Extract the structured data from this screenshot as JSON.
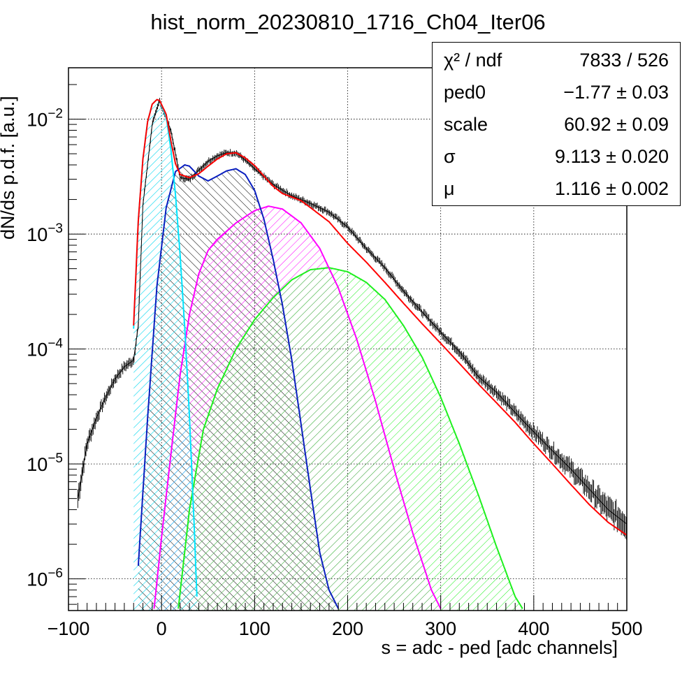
{
  "chart_data": {
    "type": "line",
    "title": "hist_norm_20230810_1716_Ch04_Iter06",
    "xlabel": "s = adc - ped [adc channels]",
    "ylabel": "dN/ds p.d.f. [a.u.]",
    "xlim": [
      -100,
      500
    ],
    "ylim": [
      5.3e-07,
      0.028
    ],
    "yscale": "log",
    "grid": true,
    "x_ticks": [
      "−100",
      "0",
      "100",
      "200",
      "300",
      "400",
      "500"
    ],
    "x_tick_values": [
      -100,
      0,
      100,
      200,
      300,
      400,
      500
    ],
    "y_ticks": [
      {
        "value": 1e-06,
        "base": "10",
        "exp": "−6"
      },
      {
        "value": 1e-05,
        "base": "10",
        "exp": "−5"
      },
      {
        "value": 0.0001,
        "base": "10",
        "exp": "−4"
      },
      {
        "value": 0.001,
        "base": "10",
        "exp": "−3"
      },
      {
        "value": 0.01,
        "base": "10",
        "exp": "−2"
      }
    ],
    "stats_box": {
      "position": "top-right",
      "rows": [
        {
          "name": "χ² / ndf",
          "value": "7833 / 526"
        },
        {
          "name": "ped0",
          "value": "−1.77 ± 0.03"
        },
        {
          "name": "scale",
          "value": "60.92 ± 0.09"
        },
        {
          "name": "σ",
          "value": "9.113 ± 0.020"
        },
        {
          "name": "μ",
          "value": "1.116 ± 0.002"
        }
      ]
    },
    "series": [
      {
        "color": "#000000",
        "kind": "histogram",
        "x": [
          -90,
          -80,
          -70,
          -60,
          -50,
          -40,
          -30,
          -25,
          -20,
          -10,
          -2,
          10,
          20,
          30,
          40,
          50,
          60,
          70,
          80,
          90,
          100,
          120,
          140,
          160,
          180,
          200,
          220,
          240,
          260,
          280,
          300,
          320,
          340,
          360,
          380,
          400,
          420,
          440,
          460,
          480,
          500
        ],
        "y": [
          5e-06,
          1.5e-05,
          2.5e-05,
          3.8e-05,
          5.5e-05,
          7e-05,
          8e-05,
          0.00016,
          0.0018,
          0.009,
          0.0145,
          0.008,
          0.0031,
          0.003,
          0.0036,
          0.0043,
          0.0048,
          0.0051,
          0.0051,
          0.0044,
          0.0037,
          0.0027,
          0.00215,
          0.00185,
          0.00155,
          0.00115,
          0.00075,
          0.00051,
          0.00032,
          0.00021,
          0.00014,
          9.5e-05,
          5.8e-05,
          4.2e-05,
          2.8e-05,
          1.9e-05,
          1.3e-05,
          9e-06,
          6e-06,
          4e-06,
          3e-06
        ]
      },
      {
        "color": "#ff0000",
        "kind": "total-fit",
        "x": [
          -30,
          -25,
          -20,
          -15,
          -10,
          -5,
          -2,
          5,
          10,
          15,
          20,
          30,
          40,
          50,
          60,
          70,
          80,
          90,
          100,
          110,
          120,
          130,
          140,
          150,
          160,
          180,
          200,
          220,
          240,
          260,
          280,
          300,
          320,
          340,
          360,
          380,
          400,
          420,
          440,
          460,
          480,
          500
        ],
        "y": [
          0.00016,
          0.0013,
          0.0045,
          0.0095,
          0.0135,
          0.0148,
          0.0145,
          0.011,
          0.0065,
          0.0041,
          0.0033,
          0.0031,
          0.00335,
          0.0039,
          0.0045,
          0.005,
          0.0051,
          0.0046,
          0.00395,
          0.0032,
          0.0026,
          0.00225,
          0.0021,
          0.00195,
          0.0017,
          0.00128,
          0.00083,
          0.00057,
          0.00038,
          0.00025,
          0.000166,
          0.000112,
          7.5e-05,
          5e-05,
          3.4e-05,
          2.3e-05,
          1.5e-05,
          1e-05,
          6.6e-06,
          4.4e-06,
          3.1e-06,
          2.4e-06
        ]
      },
      {
        "color": "#00e5ff",
        "kind": "component-0pe",
        "x": [
          -30,
          -25,
          -20,
          -15,
          -10,
          -5,
          -2,
          5,
          10,
          15,
          20,
          25,
          30,
          35,
          38
        ],
        "y": [
          0.00015,
          0.0013,
          0.0045,
          0.0095,
          0.0135,
          0.0148,
          0.0145,
          0.0105,
          0.0055,
          0.0022,
          0.00065,
          0.00015,
          2.6e-05,
          3e-06,
          7e-07
        ]
      },
      {
        "color": "#0a1fbf",
        "kind": "component-1pe",
        "x": [
          -25,
          -15,
          -5,
          5,
          15,
          25,
          30,
          40,
          50,
          60,
          70,
          80,
          90,
          100,
          110,
          120,
          130,
          140,
          150,
          160,
          170,
          180,
          190
        ],
        "y": [
          1.3e-06,
          2.5e-05,
          0.00035,
          0.0017,
          0.0035,
          0.004,
          0.0039,
          0.0032,
          0.0029,
          0.0032,
          0.00355,
          0.0037,
          0.0033,
          0.0024,
          0.00135,
          0.0006,
          0.00024,
          8e-05,
          2.2e-05,
          6e-06,
          1.7e-06,
          8e-07,
          5.5e-07
        ]
      },
      {
        "color": "#ff00ff",
        "kind": "component-2pe",
        "x": [
          -8,
          0,
          10,
          20,
          30,
          40,
          50,
          60,
          80,
          100,
          115,
          130,
          150,
          170,
          190,
          210,
          230,
          250,
          270,
          290,
          300
        ],
        "y": [
          5.5e-07,
          2.3e-06,
          1.2e-05,
          6e-05,
          0.0002,
          0.00045,
          0.00072,
          0.0009,
          0.00125,
          0.0016,
          0.00175,
          0.00165,
          0.00125,
          0.00075,
          0.00034,
          0.00012,
          3.5e-05,
          9e-06,
          2.5e-06,
          8e-07,
          5.5e-07
        ]
      },
      {
        "color": "#1ef01e",
        "kind": "component-3pe",
        "x": [
          18,
          30,
          45,
          60,
          80,
          100,
          120,
          140,
          160,
          180,
          200,
          220,
          240,
          260,
          280,
          300,
          320,
          340,
          360,
          380,
          388
        ],
        "y": [
          5.5e-07,
          4e-06,
          2e-05,
          4.5e-05,
          0.0001,
          0.00018,
          0.00028,
          0.0004,
          0.00049,
          0.00051,
          0.00047,
          0.00038,
          0.00027,
          0.00016,
          8.5e-05,
          3.8e-05,
          1.5e-05,
          5.5e-06,
          1.9e-06,
          7e-07,
          5.5e-07
        ]
      }
    ]
  }
}
